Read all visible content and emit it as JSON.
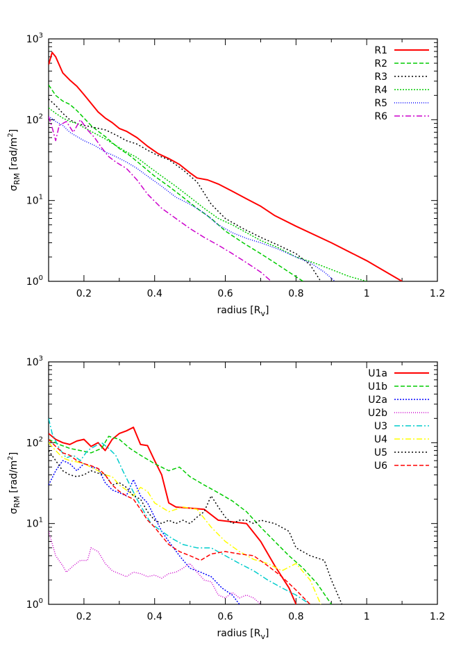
{
  "chart_data": [
    {
      "type": "line",
      "title": "",
      "xlabel": "radius [R_v]",
      "ylabel": "σ_RM [rad/m²]",
      "xlim": [
        0.1,
        1.2
      ],
      "ylim": [
        1,
        1000
      ],
      "y_scale": "log",
      "x_ticks": [
        0.2,
        0.4,
        0.6,
        0.8,
        1.0,
        1.2
      ],
      "x_tick_labels": [
        "0.2",
        "0.4",
        "0.6",
        "0.8",
        "1",
        "1.2"
      ],
      "y_ticks": [
        1,
        10,
        100,
        1000
      ],
      "legend_placement": "top-right",
      "grid": false,
      "series": [
        {
          "name": "R1",
          "color": "#ff0000",
          "dash": "solid",
          "x": [
            0.1,
            0.11,
            0.12,
            0.14,
            0.16,
            0.18,
            0.2,
            0.22,
            0.24,
            0.26,
            0.28,
            0.3,
            0.32,
            0.35,
            0.38,
            0.41,
            0.44,
            0.47,
            0.5,
            0.52,
            0.55,
            0.58,
            0.62,
            0.66,
            0.7,
            0.74,
            0.8,
            0.9,
            1.0,
            1.1
          ],
          "y": [
            480,
            680,
            600,
            380,
            310,
            260,
            205,
            160,
            125,
            105,
            92,
            78,
            72,
            60,
            47,
            38,
            33,
            28,
            22,
            19,
            18,
            16,
            13,
            10.5,
            8.5,
            6.5,
            4.8,
            3,
            1.8,
            1
          ]
        },
        {
          "name": "R2",
          "color": "#00cc00",
          "dash": "6,3",
          "x": [
            0.1,
            0.12,
            0.14,
            0.16,
            0.18,
            0.2,
            0.22,
            0.24,
            0.26,
            0.28,
            0.3,
            0.33,
            0.36,
            0.4,
            0.44,
            0.48,
            0.52,
            0.56,
            0.6,
            0.65,
            0.7,
            0.74,
            0.78,
            0.82
          ],
          "y": [
            270,
            200,
            170,
            155,
            130,
            105,
            85,
            72,
            62,
            52,
            44,
            36,
            28,
            20,
            15,
            11,
            8,
            6,
            4.2,
            3,
            2.2,
            1.7,
            1.3,
            1
          ]
        },
        {
          "name": "R3",
          "color": "#000000",
          "dash": "2,3",
          "x": [
            0.1,
            0.12,
            0.14,
            0.16,
            0.18,
            0.2,
            0.23,
            0.26,
            0.29,
            0.32,
            0.35,
            0.38,
            0.41,
            0.44,
            0.48,
            0.52,
            0.56,
            0.6,
            0.65,
            0.7,
            0.75,
            0.8,
            0.84,
            0.87
          ],
          "y": [
            180,
            150,
            120,
            100,
            90,
            85,
            80,
            75,
            65,
            55,
            50,
            42,
            36,
            32,
            24,
            17,
            9,
            6,
            4.5,
            3.5,
            2.8,
            2.2,
            1.6,
            1
          ]
        },
        {
          "name": "R4",
          "color": "#00cc00",
          "dash": "2,2",
          "x": [
            0.1,
            0.12,
            0.14,
            0.16,
            0.18,
            0.2,
            0.23,
            0.26,
            0.29,
            0.32,
            0.35,
            0.38,
            0.42,
            0.46,
            0.5,
            0.54,
            0.58,
            0.62,
            0.66,
            0.7,
            0.75,
            0.8,
            0.85,
            0.9,
            0.95,
            1.0
          ],
          "y": [
            140,
            120,
            105,
            95,
            90,
            80,
            68,
            58,
            48,
            40,
            34,
            27,
            20,
            15,
            11,
            8,
            6,
            5,
            4,
            3.2,
            2.6,
            2,
            1.7,
            1.4,
            1.15,
            1
          ]
        },
        {
          "name": "R5",
          "color": "#0000ff",
          "dash": "1,2",
          "x": [
            0.1,
            0.12,
            0.14,
            0.16,
            0.18,
            0.2,
            0.23,
            0.26,
            0.29,
            0.32,
            0.35,
            0.38,
            0.42,
            0.46,
            0.5,
            0.54,
            0.58,
            0.62,
            0.66,
            0.7,
            0.75,
            0.8,
            0.84,
            0.88,
            0.91
          ],
          "y": [
            110,
            95,
            85,
            70,
            62,
            55,
            48,
            40,
            35,
            30,
            25,
            20,
            15,
            11,
            9,
            7,
            5,
            4,
            3.4,
            3,
            2.5,
            2,
            1.7,
            1.3,
            1
          ]
        },
        {
          "name": "R6",
          "color": "#cc00cc",
          "dash": "8,3,2,3",
          "x": [
            0.1,
            0.11,
            0.12,
            0.13,
            0.15,
            0.17,
            0.19,
            0.21,
            0.23,
            0.25,
            0.27,
            0.29,
            0.32,
            0.35,
            0.38,
            0.42,
            0.46,
            0.5,
            0.54,
            0.58,
            0.62,
            0.66,
            0.7,
            0.73
          ],
          "y": [
            110,
            80,
            55,
            85,
            95,
            70,
            100,
            75,
            60,
            45,
            35,
            30,
            25,
            18,
            12,
            8,
            6,
            4.5,
            3.5,
            2.8,
            2.2,
            1.7,
            1.3,
            1
          ]
        }
      ]
    },
    {
      "type": "line",
      "title": "",
      "xlabel": "radius [R_v]",
      "ylabel": "σ_RM [rad/m²]",
      "xlim": [
        0.1,
        1.2
      ],
      "ylim": [
        1,
        1000
      ],
      "y_scale": "log",
      "x_ticks": [
        0.2,
        0.4,
        0.6,
        0.8,
        1.0,
        1.2
      ],
      "x_tick_labels": [
        "0.2",
        "0.4",
        "0.6",
        "0.8",
        "1",
        "1.2"
      ],
      "y_ticks": [
        1,
        10,
        100,
        1000
      ],
      "legend_placement": "top-right",
      "grid": false,
      "series": [
        {
          "name": "U1a",
          "color": "#ff0000",
          "dash": "solid",
          "x": [
            0.1,
            0.12,
            0.14,
            0.16,
            0.18,
            0.2,
            0.22,
            0.24,
            0.26,
            0.28,
            0.3,
            0.32,
            0.34,
            0.36,
            0.38,
            0.4,
            0.42,
            0.44,
            0.46,
            0.5,
            0.54,
            0.58,
            0.62,
            0.66,
            0.7,
            0.74,
            0.78,
            0.8
          ],
          "y": [
            130,
            110,
            100,
            95,
            105,
            110,
            90,
            100,
            80,
            110,
            130,
            140,
            155,
            95,
            92,
            60,
            40,
            18,
            16,
            15.5,
            15,
            11,
            10.5,
            10,
            6,
            3,
            1.6,
            1
          ]
        },
        {
          "name": "U1b",
          "color": "#00cc00",
          "dash": "6,3",
          "x": [
            0.1,
            0.13,
            0.16,
            0.19,
            0.22,
            0.25,
            0.27,
            0.3,
            0.33,
            0.36,
            0.4,
            0.44,
            0.47,
            0.5,
            0.54,
            0.58,
            0.62,
            0.66,
            0.7,
            0.74,
            0.78,
            0.82,
            0.86,
            0.9
          ],
          "y": [
            110,
            95,
            85,
            80,
            75,
            85,
            120,
            110,
            85,
            70,
            55,
            45,
            50,
            38,
            30,
            24,
            19,
            14,
            9,
            6,
            4,
            2.8,
            1.8,
            1
          ]
        },
        {
          "name": "U2a",
          "color": "#0000ff",
          "dash": "2,2",
          "x": [
            0.1,
            0.12,
            0.14,
            0.16,
            0.18,
            0.2,
            0.22,
            0.24,
            0.26,
            0.28,
            0.3,
            0.32,
            0.34,
            0.36,
            0.38,
            0.4,
            0.42,
            0.44,
            0.47,
            0.5,
            0.53,
            0.56,
            0.59,
            0.62,
            0.64
          ],
          "y": [
            30,
            45,
            60,
            55,
            45,
            55,
            50,
            48,
            32,
            26,
            24,
            22,
            35,
            22,
            18,
            12,
            8,
            6,
            4,
            2.8,
            2.5,
            2.2,
            1.6,
            1.3,
            1
          ]
        },
        {
          "name": "U2b",
          "color": "#cc00cc",
          "dash": "1,2",
          "x": [
            0.1,
            0.12,
            0.14,
            0.15,
            0.17,
            0.19,
            0.21,
            0.22,
            0.24,
            0.26,
            0.28,
            0.3,
            0.32,
            0.34,
            0.36,
            0.38,
            0.4,
            0.42,
            0.44,
            0.46,
            0.48,
            0.5,
            0.52,
            0.54,
            0.56,
            0.58,
            0.6,
            0.62,
            0.64,
            0.66,
            0.68,
            0.7
          ],
          "y": [
            8,
            4,
            3,
            2.5,
            3,
            3.5,
            3.5,
            5,
            4.5,
            3.2,
            2.6,
            2.4,
            2.2,
            2.5,
            2.4,
            2.2,
            2.3,
            2.1,
            2.4,
            2.5,
            2.8,
            3.2,
            2.5,
            2,
            1.9,
            1.3,
            1.2,
            1.4,
            1.2,
            1.3,
            1.2,
            1
          ]
        },
        {
          "name": "U3",
          "color": "#00cccc",
          "dash": "8,3,2,3",
          "x": [
            0.1,
            0.11,
            0.13,
            0.15,
            0.17,
            0.19,
            0.21,
            0.23,
            0.25,
            0.27,
            0.29,
            0.31,
            0.33,
            0.35,
            0.37,
            0.39,
            0.42,
            0.45,
            0.48,
            0.52,
            0.56,
            0.6,
            0.64,
            0.68,
            0.72,
            0.76,
            0.8,
            0.84
          ],
          "y": [
            200,
            130,
            85,
            65,
            70,
            60,
            80,
            90,
            100,
            85,
            70,
            45,
            30,
            20,
            14,
            10,
            8,
            6.5,
            5.5,
            5,
            5,
            4,
            3.2,
            2.6,
            2,
            1.6,
            1.3,
            1
          ]
        },
        {
          "name": "U4",
          "color": "#ffff00",
          "dash": "8,3,2,3",
          "x": [
            0.1,
            0.12,
            0.14,
            0.16,
            0.18,
            0.2,
            0.22,
            0.24,
            0.26,
            0.28,
            0.3,
            0.32,
            0.34,
            0.36,
            0.38,
            0.4,
            0.44,
            0.48,
            0.52,
            0.56,
            0.6,
            0.64,
            0.68,
            0.72,
            0.76,
            0.8,
            0.84,
            0.87
          ],
          "y": [
            100,
            80,
            65,
            60,
            58,
            55,
            50,
            45,
            40,
            38,
            30,
            26,
            22,
            28,
            25,
            18,
            14,
            16,
            15,
            9,
            6,
            4.5,
            3.6,
            3.2,
            2.6,
            3.2,
            2,
            1
          ]
        },
        {
          "name": "U5",
          "color": "#000000",
          "dash": "2,3",
          "x": [
            0.1,
            0.12,
            0.14,
            0.16,
            0.18,
            0.2,
            0.22,
            0.24,
            0.26,
            0.28,
            0.3,
            0.32,
            0.34,
            0.36,
            0.38,
            0.4,
            0.42,
            0.44,
            0.46,
            0.48,
            0.5,
            0.52,
            0.54,
            0.56,
            0.58,
            0.6,
            0.62,
            0.64,
            0.66,
            0.68,
            0.7,
            0.74,
            0.78,
            0.8,
            0.84,
            0.88,
            0.9,
            0.93
          ],
          "y": [
            80,
            60,
            45,
            40,
            38,
            40,
            45,
            42,
            40,
            30,
            32,
            28,
            22,
            20,
            14,
            11,
            10,
            11,
            10,
            11,
            10,
            12,
            14,
            22,
            16,
            12,
            10,
            11,
            11,
            10,
            11,
            10,
            8,
            5,
            4,
            3.5,
            2,
            1
          ]
        },
        {
          "name": "U6",
          "color": "#ff0000",
          "dash": "6,3",
          "x": [
            0.1,
            0.12,
            0.14,
            0.16,
            0.18,
            0.2,
            0.22,
            0.24,
            0.26,
            0.28,
            0.3,
            0.32,
            0.34,
            0.36,
            0.38,
            0.4,
            0.42,
            0.44,
            0.47,
            0.5,
            0.53,
            0.56,
            0.6,
            0.64,
            0.68,
            0.72,
            0.76,
            0.8,
            0.84
          ],
          "y": [
            110,
            90,
            75,
            70,
            60,
            55,
            52,
            48,
            40,
            30,
            25,
            22,
            20,
            15,
            11,
            9,
            7,
            5.5,
            4.5,
            4,
            3.5,
            4.2,
            4.5,
            4.2,
            4,
            3,
            2.2,
            1.5,
            1
          ]
        }
      ]
    }
  ]
}
